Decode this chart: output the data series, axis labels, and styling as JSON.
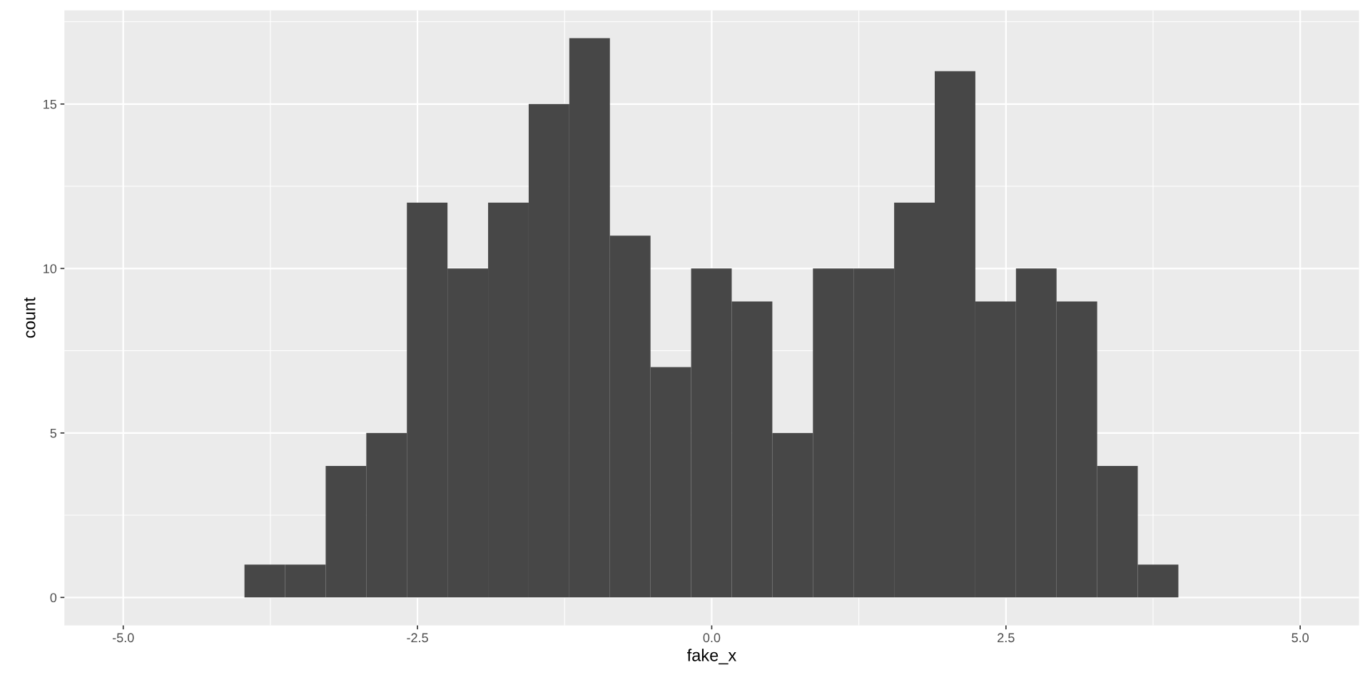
{
  "chart_data": {
    "type": "histogram",
    "xlabel": "fake_x",
    "ylabel": "count",
    "color": "#474747",
    "bins": [
      -3.97,
      -3.625,
      -3.28,
      -2.935,
      -2.59,
      -2.245,
      -1.9,
      -1.555,
      -1.21,
      -0.865,
      -0.52,
      -0.175,
      0.17,
      0.515,
      0.86,
      1.205,
      1.55,
      1.895,
      2.24,
      2.585,
      2.93,
      3.275,
      3.62,
      3.965
    ],
    "values": [
      1,
      1,
      4,
      5,
      12,
      10,
      12,
      15,
      17,
      11,
      7,
      10,
      9,
      5,
      10,
      10,
      12,
      16,
      9,
      10,
      9,
      4,
      1
    ],
    "xlim": [
      -5.5,
      5.5
    ],
    "xticks": [
      {
        "value": -5,
        "label": "-5.0"
      },
      {
        "value": -2.5,
        "label": "-2.5"
      },
      {
        "value": 0,
        "label": "0.0"
      },
      {
        "value": 2.5,
        "label": "2.5"
      },
      {
        "value": 5,
        "label": "5.0"
      }
    ],
    "ylim": [
      -0.85,
      17.85
    ],
    "yticks": [
      0,
      5,
      10,
      15
    ],
    "grid": true
  }
}
